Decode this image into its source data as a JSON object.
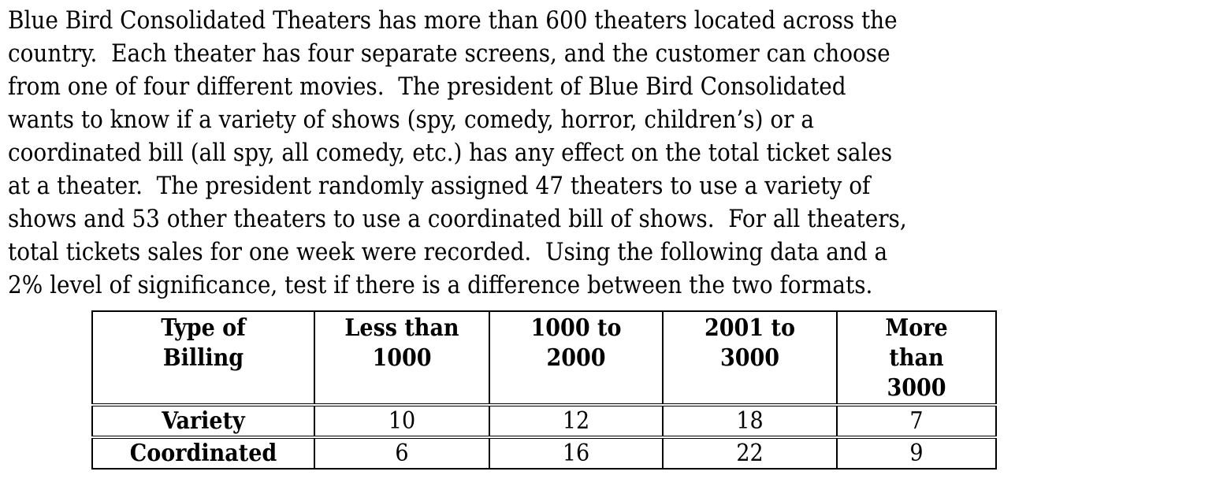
{
  "document": {
    "paragraph_lines": [
      "Blue Bird Consolidated Theaters has more than 600 theaters located across the",
      "country.  Each theater has four separate screens, and the customer can choose",
      "from one of four different movies.  The president of Blue Bird Consolidated",
      "wants to know if a variety of shows (spy, comedy, horror, children’s) or a",
      "coordinated bill (all spy, all comedy, etc.) has any effect on the total ticket sales",
      "at a theater.  The president randomly assigned 47 theaters to use a variety of",
      "shows and 53 other theaters to use a coordinated bill of shows.  For all theaters,",
      "total tickets sales for one week were recorded.  Using the following data and a",
      "2% level of significance, test if there is a difference between the two formats."
    ]
  },
  "table": {
    "header": [
      "Type of Billing",
      "Less than 1000",
      "1000 to 2000",
      "2001 to 3000",
      "More than 3000"
    ],
    "rows": [
      {
        "label": "Variety",
        "values": [
          10,
          12,
          18,
          7
        ]
      },
      {
        "label": "Coordinated",
        "values": [
          6,
          16,
          22,
          9
        ]
      }
    ]
  },
  "colors": {
    "text": "#000000",
    "background": "#ffffff",
    "table_border": "#000000"
  }
}
